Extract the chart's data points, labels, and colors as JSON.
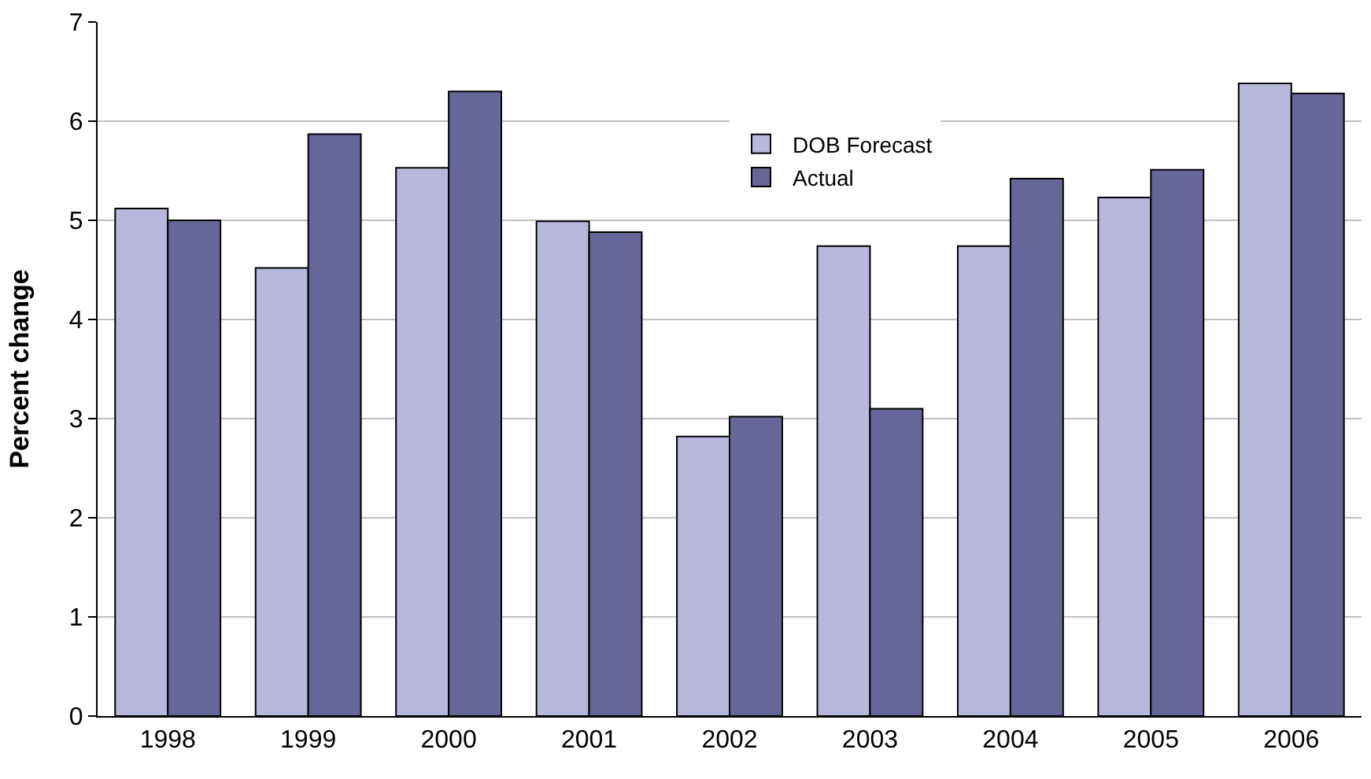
{
  "chart_data": {
    "type": "bar",
    "ylabel": "Percent change",
    "categories": [
      "1998",
      "1999",
      "2000",
      "2001",
      "2002",
      "2003",
      "2004",
      "2005",
      "2006"
    ],
    "series": [
      {
        "name": "DOB Forecast",
        "color": "#b8b8dc",
        "values": [
          5.12,
          4.52,
          5.53,
          4.99,
          2.82,
          4.74,
          4.74,
          5.23,
          6.38
        ]
      },
      {
        "name": "Actual",
        "color": "#666699",
        "values": [
          5.0,
          5.87,
          6.3,
          4.88,
          3.02,
          3.1,
          5.42,
          5.51,
          6.28
        ]
      }
    ],
    "ylim": [
      0,
      7
    ],
    "yticks": [
      0,
      1,
      2,
      3,
      4,
      5,
      6,
      7
    ],
    "grid": "y",
    "legend": "top"
  }
}
